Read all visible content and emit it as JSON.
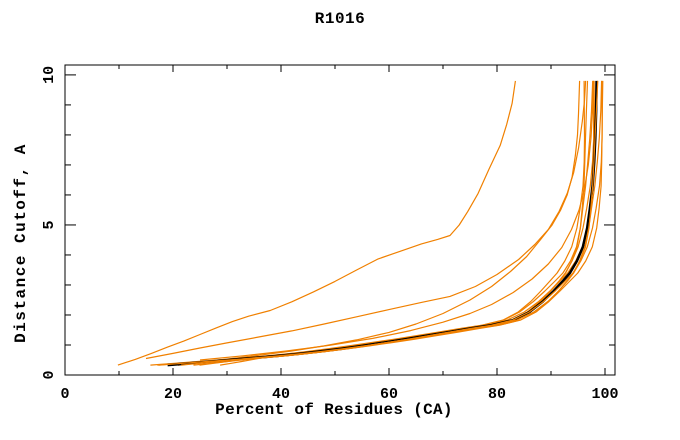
{
  "page": {
    "background": "#ffffff"
  },
  "header": {
    "title": "R1016"
  },
  "chart_data": {
    "type": "line",
    "title": "R1016",
    "xlabel": "Percent of Residues (CA)",
    "ylabel": "Distance Cutoff, A",
    "xlim": [
      0,
      101.85
    ],
    "ylim": [
      0,
      10.33
    ],
    "grid": false,
    "legend": "none",
    "x_ticks_major": [
      0,
      20,
      40,
      60,
      80,
      100
    ],
    "x_tick_labels": [
      "0",
      "20",
      "40",
      "60",
      "80",
      "100"
    ],
    "x_ticks_minor": [
      10,
      30,
      50,
      70,
      90
    ],
    "y_ticks_major": [
      0,
      5,
      10
    ],
    "y_tick_labels": [
      "0",
      "5",
      "10"
    ],
    "y_ticks_minor": [
      1,
      2,
      3,
      4,
      6,
      7,
      8,
      9
    ],
    "colors": {
      "model": "#f08000",
      "consensus": "#000000",
      "axis": "#000000",
      "background": "#ffffff"
    },
    "series": [
      {
        "name": "consensus-curve",
        "color": "#000000",
        "width": 2.6,
        "points": [
          [
            19,
            0.33
          ],
          [
            23,
            0.39
          ],
          [
            27,
            0.45
          ],
          [
            31,
            0.51
          ],
          [
            35,
            0.57
          ],
          [
            39,
            0.63
          ],
          [
            43,
            0.7
          ],
          [
            47,
            0.78
          ],
          [
            51,
            0.87
          ],
          [
            55,
            0.97
          ],
          [
            59,
            1.08
          ],
          [
            63,
            1.19
          ],
          [
            67,
            1.31
          ],
          [
            71,
            1.43
          ],
          [
            75,
            1.55
          ],
          [
            79,
            1.66
          ],
          [
            83,
            1.83
          ],
          [
            86,
            2.1
          ],
          [
            88.5,
            2.45
          ],
          [
            90.5,
            2.8
          ],
          [
            92.3,
            3.15
          ],
          [
            93.5,
            3.4
          ],
          [
            94.8,
            3.8
          ],
          [
            95.9,
            4.27
          ],
          [
            96.7,
            4.9
          ],
          [
            97.2,
            5.55
          ],
          [
            97.7,
            6.3
          ],
          [
            98.0,
            7.1
          ],
          [
            98.2,
            7.9
          ],
          [
            98.35,
            8.8
          ],
          [
            98.45,
            9.8
          ]
        ]
      },
      {
        "name": "model-outlier-far",
        "color": "#f08000",
        "width": 1.2,
        "points": [
          [
            9.8,
            0.33
          ],
          [
            13,
            0.52
          ],
          [
            16,
            0.72
          ],
          [
            19,
            0.93
          ],
          [
            22,
            1.13
          ],
          [
            25,
            1.35
          ],
          [
            28,
            1.57
          ],
          [
            31,
            1.78
          ],
          [
            34,
            1.96
          ],
          [
            38,
            2.15
          ],
          [
            42,
            2.44
          ],
          [
            46,
            2.77
          ],
          [
            50,
            3.12
          ],
          [
            54,
            3.5
          ],
          [
            58,
            3.87
          ],
          [
            62,
            4.12
          ],
          [
            66,
            4.37
          ],
          [
            69,
            4.52
          ],
          [
            71.3,
            4.65
          ],
          [
            73,
            5.0
          ],
          [
            74.6,
            5.45
          ],
          [
            76.5,
            6.05
          ],
          [
            78.5,
            6.85
          ],
          [
            80.6,
            7.65
          ],
          [
            81.8,
            8.35
          ],
          [
            82.8,
            9.05
          ],
          [
            83.4,
            9.8
          ]
        ]
      },
      {
        "name": "model-outlier-mid",
        "color": "#f08000",
        "width": 1.2,
        "points": [
          [
            24,
            0.42
          ],
          [
            30,
            0.53
          ],
          [
            36,
            0.66
          ],
          [
            42,
            0.8
          ],
          [
            48,
            0.97
          ],
          [
            54,
            1.17
          ],
          [
            60,
            1.42
          ],
          [
            65,
            1.7
          ],
          [
            70,
            2.05
          ],
          [
            75,
            2.5
          ],
          [
            79,
            2.95
          ],
          [
            82.5,
            3.45
          ],
          [
            85.5,
            3.95
          ],
          [
            88,
            4.5
          ],
          [
            90.2,
            5.0
          ],
          [
            91.8,
            5.5
          ],
          [
            93,
            6.0
          ],
          [
            93.9,
            6.6
          ],
          [
            94.5,
            7.3
          ],
          [
            94.9,
            8.0
          ],
          [
            95.1,
            8.7
          ],
          [
            95.3,
            9.8
          ]
        ]
      },
      {
        "name": "model-deviator-upper",
        "color": "#f08000",
        "width": 1.2,
        "points": [
          [
            15,
            0.55
          ],
          [
            20,
            0.72
          ],
          [
            25,
            0.9
          ],
          [
            30,
            1.07
          ],
          [
            36,
            1.27
          ],
          [
            42,
            1.47
          ],
          [
            48,
            1.7
          ],
          [
            54,
            1.94
          ],
          [
            60,
            2.18
          ],
          [
            66,
            2.42
          ],
          [
            71.3,
            2.62
          ],
          [
            76,
            2.95
          ],
          [
            80,
            3.35
          ],
          [
            84,
            3.85
          ],
          [
            87,
            4.35
          ],
          [
            89.5,
            4.85
          ],
          [
            91.5,
            5.45
          ],
          [
            93,
            6.05
          ],
          [
            94.2,
            6.75
          ],
          [
            95.1,
            7.55
          ],
          [
            95.8,
            8.45
          ],
          [
            96.2,
            9.15
          ],
          [
            96.4,
            9.8
          ]
        ]
      },
      {
        "name": "model-deviator-slight",
        "color": "#f08000",
        "width": 1.2,
        "points": [
          [
            25,
            0.5
          ],
          [
            33,
            0.64
          ],
          [
            41,
            0.8
          ],
          [
            49,
            0.99
          ],
          [
            57,
            1.22
          ],
          [
            64,
            1.48
          ],
          [
            70,
            1.76
          ],
          [
            75,
            2.05
          ],
          [
            79,
            2.35
          ],
          [
            83,
            2.75
          ],
          [
            86.5,
            3.2
          ],
          [
            89.5,
            3.7
          ],
          [
            92,
            4.25
          ],
          [
            93.8,
            4.85
          ],
          [
            95.2,
            5.5
          ],
          [
            96.2,
            6.2
          ],
          [
            96.9,
            7.0
          ],
          [
            97.4,
            7.9
          ],
          [
            97.7,
            8.85
          ],
          [
            97.8,
            9.8
          ]
        ]
      }
    ],
    "bundle": {
      "name": "model-bundle",
      "color": "#f08000",
      "width": 1.2,
      "count": 9,
      "x_offsets": [
        -2.1,
        -1.5,
        -1.0,
        -0.6,
        -0.25,
        0.25,
        0.6,
        1.0,
        1.45
      ],
      "start_spread": [
        4,
        -2,
        3,
        -1,
        6,
        2,
        -2,
        4,
        8
      ],
      "base_points": [
        [
          19,
          0.33
        ],
        [
          23,
          0.39
        ],
        [
          27,
          0.45
        ],
        [
          31,
          0.51
        ],
        [
          35,
          0.57
        ],
        [
          39,
          0.63
        ],
        [
          43,
          0.7
        ],
        [
          47,
          0.78
        ],
        [
          51,
          0.87
        ],
        [
          55,
          0.97
        ],
        [
          59,
          1.08
        ],
        [
          63,
          1.19
        ],
        [
          67,
          1.31
        ],
        [
          71,
          1.43
        ],
        [
          75,
          1.55
        ],
        [
          79,
          1.66
        ],
        [
          83,
          1.83
        ],
        [
          86,
          2.1
        ],
        [
          88.5,
          2.45
        ],
        [
          90.5,
          2.8
        ],
        [
          92.3,
          3.15
        ],
        [
          93.5,
          3.4
        ],
        [
          94.8,
          3.8
        ],
        [
          95.9,
          4.27
        ],
        [
          96.7,
          4.9
        ],
        [
          97.2,
          5.55
        ],
        [
          97.7,
          6.3
        ],
        [
          98.0,
          7.1
        ],
        [
          98.2,
          7.9
        ],
        [
          98.35,
          8.8
        ],
        [
          98.45,
          9.8
        ]
      ]
    }
  }
}
